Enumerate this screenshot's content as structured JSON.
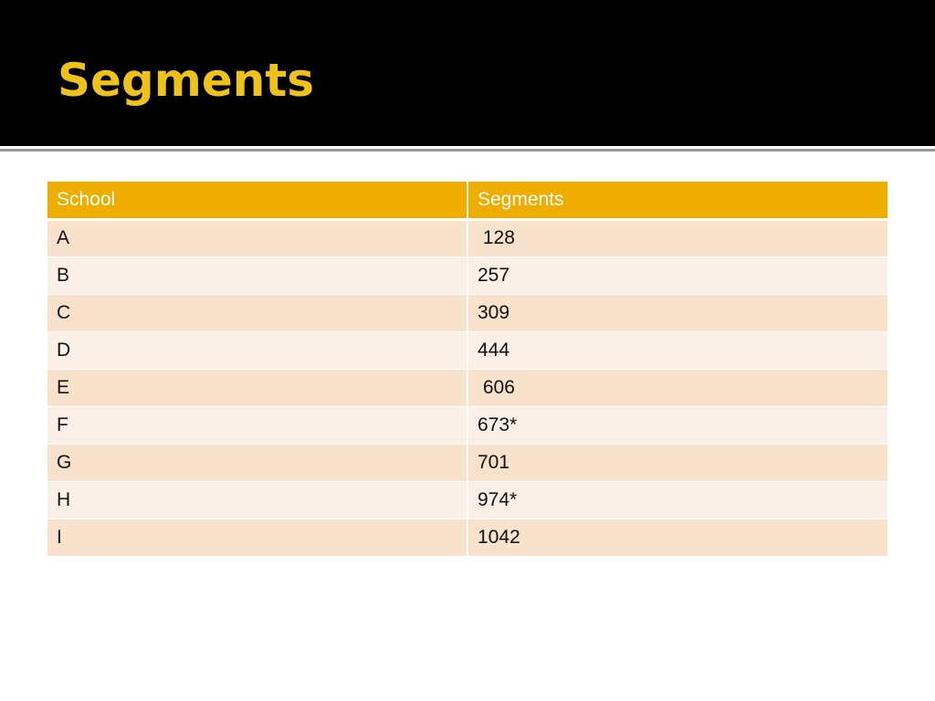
{
  "slide": {
    "title": "Segments"
  },
  "colors": {
    "title_bar": "#000000",
    "title_text": "#efc21a",
    "header_fill": "#efad00",
    "row_odd_fill": "#f8e2cb",
    "row_even_fill": "#fbf0e7"
  },
  "table": {
    "headers": [
      "School",
      "Segments"
    ],
    "rows": [
      [
        "A",
        " 128"
      ],
      [
        "B",
        "257"
      ],
      [
        "C",
        "309"
      ],
      [
        "D",
        "444"
      ],
      [
        "E",
        " 606"
      ],
      [
        "F",
        "673*"
      ],
      [
        "G",
        "701"
      ],
      [
        "H",
        "974*"
      ],
      [
        "I",
        "1042"
      ]
    ]
  }
}
